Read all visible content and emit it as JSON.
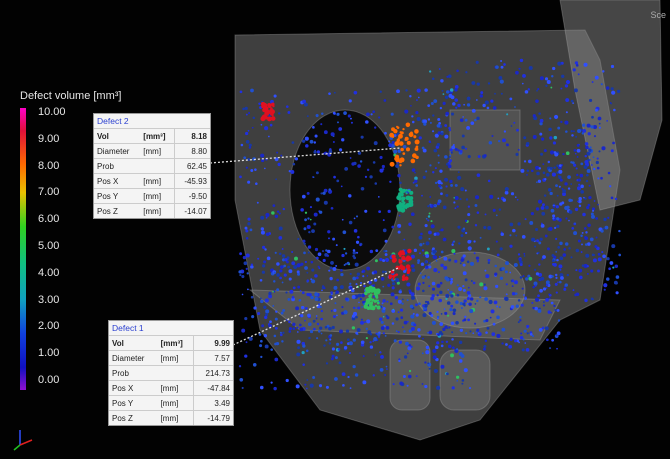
{
  "corner_label": "Sce",
  "legend": {
    "title": "Defect volume [mm³]",
    "ticks": [
      "10.00",
      "9.00",
      "8.00",
      "7.00",
      "6.00",
      "5.00",
      "4.00",
      "3.00",
      "2.00",
      "1.00",
      "0.00"
    ]
  },
  "panels": [
    {
      "title": "Defect 2",
      "rows": [
        {
          "label": "Vol",
          "unit": "[mm³]",
          "value": "8.18"
        },
        {
          "label": "Diameter",
          "unit": "[mm]",
          "value": "8.80"
        },
        {
          "label": "Prob",
          "value": "62.45"
        },
        {
          "label": "Pos X",
          "unit": "[mm]",
          "value": "-45.93"
        },
        {
          "label": "Pos Y",
          "unit": "[mm]",
          "value": "-9.50"
        },
        {
          "label": "Pos Z",
          "unit": "[mm]",
          "value": "-14.07"
        }
      ]
    },
    {
      "title": "Defect 1",
      "rows": [
        {
          "label": "Vol",
          "unit": "[mm³]",
          "value": "9.99"
        },
        {
          "label": "Diameter",
          "unit": "[mm]",
          "value": "7.57"
        },
        {
          "label": "Prob",
          "value": "214.73"
        },
        {
          "label": "Pos X",
          "unit": "[mm]",
          "value": "-47.84"
        },
        {
          "label": "Pos Y",
          "unit": "[mm]",
          "value": "3.49"
        },
        {
          "label": "Pos Z",
          "unit": "[mm]",
          "value": "-14.79"
        }
      ]
    }
  ]
}
